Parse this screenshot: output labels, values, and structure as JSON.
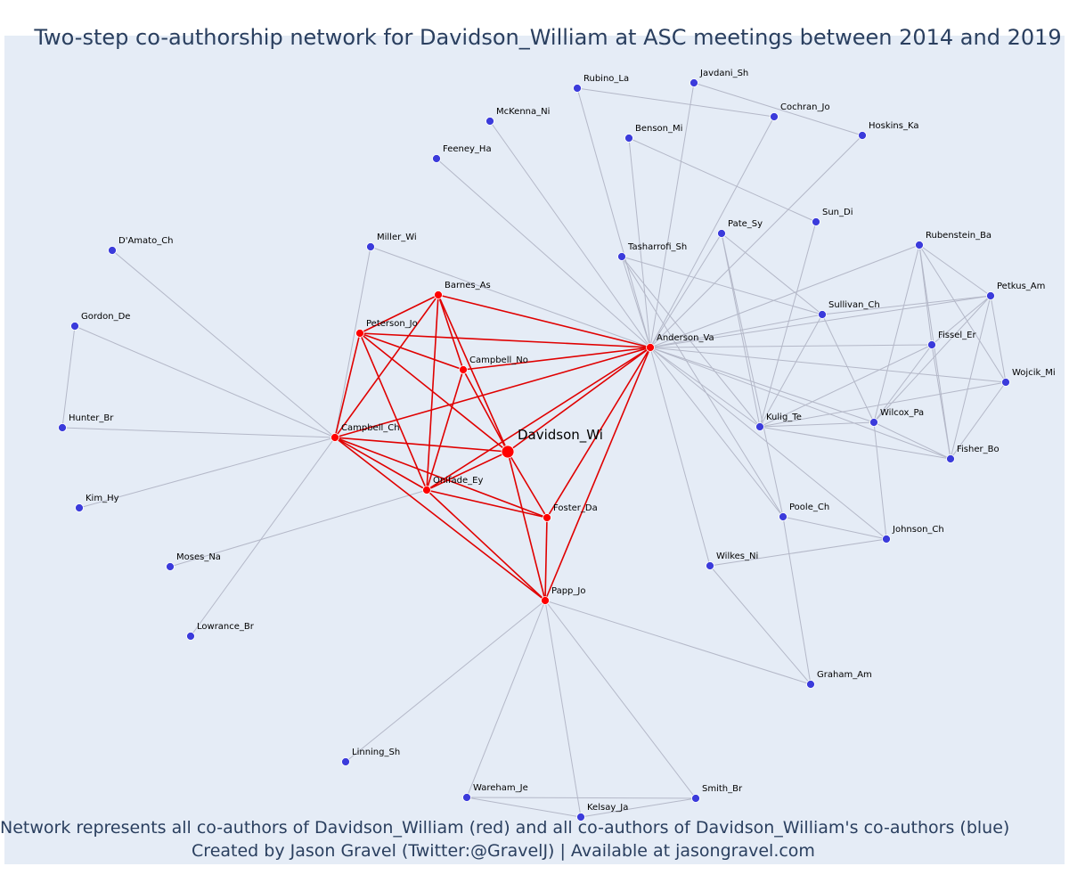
{
  "title": "Two-step co-authorship network for Davidson_William at ASC meetings between 2014 and 2019",
  "footer": {
    "line1": "Network represents all co-authors of Davidson_William (red) and all co-authors of Davidson_William's co-authors (blue)",
    "line2": "Created by Jason Gravel (Twitter:@GravelJ) | Available at jasongravel.com"
  },
  "colors": {
    "background": "#e5ecf6",
    "red_node": "#ff0000",
    "blue_node": "#3b3bdb",
    "red_edge": "#e00000",
    "gray_edge": "#b4b8c8"
  },
  "center": "Davidson_Wi",
  "nodes": [
    {
      "id": "Davidson_Wi",
      "group": "red"
    },
    {
      "id": "Anderson_Va",
      "group": "red"
    },
    {
      "id": "Barnes_As",
      "group": "red"
    },
    {
      "id": "Peterson_Jo",
      "group": "red"
    },
    {
      "id": "Campbell_No",
      "group": "red"
    },
    {
      "id": "Campbell_Ch",
      "group": "red"
    },
    {
      "id": "Onifade_Ey",
      "group": "red"
    },
    {
      "id": "Foster_Da",
      "group": "red"
    },
    {
      "id": "Papp_Jo",
      "group": "red"
    },
    {
      "id": "Rubino_La",
      "group": "blue"
    },
    {
      "id": "Javdani_Sh",
      "group": "blue"
    },
    {
      "id": "McKenna_Ni",
      "group": "blue"
    },
    {
      "id": "Cochran_Jo",
      "group": "blue"
    },
    {
      "id": "Hoskins_Ka",
      "group": "blue"
    },
    {
      "id": "Benson_Mi",
      "group": "blue"
    },
    {
      "id": "Feeney_Ha",
      "group": "blue"
    },
    {
      "id": "Sun_Di",
      "group": "blue"
    },
    {
      "id": "Pate_Sy",
      "group": "blue"
    },
    {
      "id": "D'Amato_Ch",
      "group": "blue"
    },
    {
      "id": "Miller_Wi",
      "group": "blue"
    },
    {
      "id": "Tasharrofi_Sh",
      "group": "blue"
    },
    {
      "id": "Rubenstein_Ba",
      "group": "blue"
    },
    {
      "id": "Petkus_Am",
      "group": "blue"
    },
    {
      "id": "Gordon_De",
      "group": "blue"
    },
    {
      "id": "Sullivan_Ch",
      "group": "blue"
    },
    {
      "id": "Fissel_Er",
      "group": "blue"
    },
    {
      "id": "Wojcik_Mi",
      "group": "blue"
    },
    {
      "id": "Hunter_Br",
      "group": "blue"
    },
    {
      "id": "Kulig_Te",
      "group": "blue"
    },
    {
      "id": "Wilcox_Pa",
      "group": "blue"
    },
    {
      "id": "Fisher_Bo",
      "group": "blue"
    },
    {
      "id": "Kim_Hy",
      "group": "blue"
    },
    {
      "id": "Poole_Ch",
      "group": "blue"
    },
    {
      "id": "Johnson_Ch",
      "group": "blue"
    },
    {
      "id": "Moses_Na",
      "group": "blue"
    },
    {
      "id": "Wilkes_Ni",
      "group": "blue"
    },
    {
      "id": "Lowrance_Br",
      "group": "blue"
    },
    {
      "id": "Graham_Am",
      "group": "blue"
    },
    {
      "id": "Linning_Sh",
      "group": "blue"
    },
    {
      "id": "Wareham_Je",
      "group": "blue"
    },
    {
      "id": "Smith_Br",
      "group": "blue"
    },
    {
      "id": "Kelsay_Ja",
      "group": "blue"
    }
  ],
  "edges": [
    [
      "Davidson_Wi",
      "Anderson_Va"
    ],
    [
      "Davidson_Wi",
      "Barnes_As"
    ],
    [
      "Davidson_Wi",
      "Peterson_Jo"
    ],
    [
      "Davidson_Wi",
      "Campbell_No"
    ],
    [
      "Davidson_Wi",
      "Campbell_Ch"
    ],
    [
      "Davidson_Wi",
      "Onifade_Ey"
    ],
    [
      "Davidson_Wi",
      "Foster_Da"
    ],
    [
      "Davidson_Wi",
      "Papp_Jo"
    ],
    [
      "Anderson_Va",
      "Barnes_As"
    ],
    [
      "Anderson_Va",
      "Peterson_Jo"
    ],
    [
      "Anderson_Va",
      "Campbell_No"
    ],
    [
      "Anderson_Va",
      "Campbell_Ch"
    ],
    [
      "Anderson_Va",
      "Onifade_Ey"
    ],
    [
      "Anderson_Va",
      "Foster_Da"
    ],
    [
      "Anderson_Va",
      "Papp_Jo"
    ],
    [
      "Barnes_As",
      "Peterson_Jo"
    ],
    [
      "Barnes_As",
      "Campbell_No"
    ],
    [
      "Barnes_As",
      "Campbell_Ch"
    ],
    [
      "Barnes_As",
      "Onifade_Ey"
    ],
    [
      "Peterson_Jo",
      "Campbell_No"
    ],
    [
      "Peterson_Jo",
      "Campbell_Ch"
    ],
    [
      "Peterson_Jo",
      "Onifade_Ey"
    ],
    [
      "Campbell_No",
      "Onifade_Ey"
    ],
    [
      "Campbell_Ch",
      "Onifade_Ey"
    ],
    [
      "Campbell_Ch",
      "Foster_Da"
    ],
    [
      "Campbell_Ch",
      "Papp_Jo"
    ],
    [
      "Onifade_Ey",
      "Foster_Da"
    ],
    [
      "Onifade_Ey",
      "Papp_Jo"
    ],
    [
      "Foster_Da",
      "Papp_Jo"
    ],
    [
      "Anderson_Va",
      "Rubino_La"
    ],
    [
      "Anderson_Va",
      "Javdani_Sh"
    ],
    [
      "Anderson_Va",
      "McKenna_Ni"
    ],
    [
      "Anderson_Va",
      "Cochran_Jo"
    ],
    [
      "Anderson_Va",
      "Hoskins_Ka"
    ],
    [
      "Anderson_Va",
      "Benson_Mi"
    ],
    [
      "Anderson_Va",
      "Feeney_Ha"
    ],
    [
      "Anderson_Va",
      "Pate_Sy"
    ],
    [
      "Anderson_Va",
      "Miller_Wi"
    ],
    [
      "Anderson_Va",
      "Tasharrofi_Sh"
    ],
    [
      "Anderson_Va",
      "Rubenstein_Ba"
    ],
    [
      "Anderson_Va",
      "Petkus_Am"
    ],
    [
      "Anderson_Va",
      "Sullivan_Ch"
    ],
    [
      "Anderson_Va",
      "Fissel_Er"
    ],
    [
      "Anderson_Va",
      "Wojcik_Mi"
    ],
    [
      "Anderson_Va",
      "Kulig_Te"
    ],
    [
      "Anderson_Va",
      "Wilcox_Pa"
    ],
    [
      "Anderson_Va",
      "Fisher_Bo"
    ],
    [
      "Anderson_Va",
      "Poole_Ch"
    ],
    [
      "Anderson_Va",
      "Johnson_Ch"
    ],
    [
      "Anderson_Va",
      "Wilkes_Ni"
    ],
    [
      "Rubino_La",
      "Cochran_Jo"
    ],
    [
      "Javdani_Sh",
      "Hoskins_Ka"
    ],
    [
      "Benson_Mi",
      "Sun_Di"
    ],
    [
      "Sun_Di",
      "Kulig_Te"
    ],
    [
      "Pate_Sy",
      "Sullivan_Ch"
    ],
    [
      "Pate_Sy",
      "Kulig_Te"
    ],
    [
      "Pate_Sy",
      "Poole_Ch"
    ],
    [
      "Tasharrofi_Sh",
      "Sullivan_Ch"
    ],
    [
      "Tasharrofi_Sh",
      "Kulig_Te"
    ],
    [
      "Tasharrofi_Sh",
      "Poole_Ch"
    ],
    [
      "Sullivan_Ch",
      "Kulig_Te"
    ],
    [
      "Sullivan_Ch",
      "Wilcox_Pa"
    ],
    [
      "Rubenstein_Ba",
      "Petkus_Am"
    ],
    [
      "Rubenstein_Ba",
      "Fissel_Er"
    ],
    [
      "Rubenstein_Ba",
      "Wojcik_Mi"
    ],
    [
      "Rubenstein_Ba",
      "Wilcox_Pa"
    ],
    [
      "Rubenstein_Ba",
      "Fisher_Bo"
    ],
    [
      "Petkus_Am",
      "Fissel_Er"
    ],
    [
      "Petkus_Am",
      "Wojcik_Mi"
    ],
    [
      "Petkus_Am",
      "Wilcox_Pa"
    ],
    [
      "Petkus_Am",
      "Fisher_Bo"
    ],
    [
      "Petkus_Am",
      "Sullivan_Ch"
    ],
    [
      "Fissel_Er",
      "Kulig_Te"
    ],
    [
      "Fissel_Er",
      "Wilcox_Pa"
    ],
    [
      "Fissel_Er",
      "Fisher_Bo"
    ],
    [
      "Wojcik_Mi",
      "Kulig_Te"
    ],
    [
      "Wojcik_Mi",
      "Fisher_Bo"
    ],
    [
      "Kulig_Te",
      "Wilcox_Pa"
    ],
    [
      "Kulig_Te",
      "Fisher_Bo"
    ],
    [
      "Wilcox_Pa",
      "Fisher_Bo"
    ],
    [
      "Wilcox_Pa",
      "Johnson_Ch"
    ],
    [
      "Poole_Ch",
      "Johnson_Ch"
    ],
    [
      "Poole_Ch",
      "Graham_Am"
    ],
    [
      "Wilkes_Ni",
      "Johnson_Ch"
    ],
    [
      "Wilkes_Ni",
      "Graham_Am"
    ],
    [
      "Campbell_Ch",
      "D'Amato_Ch"
    ],
    [
      "Campbell_Ch",
      "Gordon_De"
    ],
    [
      "Campbell_Ch",
      "Hunter_Br"
    ],
    [
      "Campbell_Ch",
      "Kim_Hy"
    ],
    [
      "Campbell_Ch",
      "Lowrance_Br"
    ],
    [
      "Campbell_Ch",
      "Miller_Wi"
    ],
    [
      "Gordon_De",
      "Hunter_Br"
    ],
    [
      "Onifade_Ey",
      "Moses_Na"
    ],
    [
      "Papp_Jo",
      "Linning_Sh"
    ],
    [
      "Papp_Jo",
      "Wareham_Je"
    ],
    [
      "Papp_Jo",
      "Smith_Br"
    ],
    [
      "Papp_Jo",
      "Kelsay_Ja"
    ],
    [
      "Papp_Jo",
      "Graham_Am"
    ],
    [
      "Wareham_Je",
      "Kelsay_Ja"
    ],
    [
      "Wareham_Je",
      "Smith_Br"
    ],
    [
      "Kelsay_Ja",
      "Smith_Br"
    ]
  ]
}
